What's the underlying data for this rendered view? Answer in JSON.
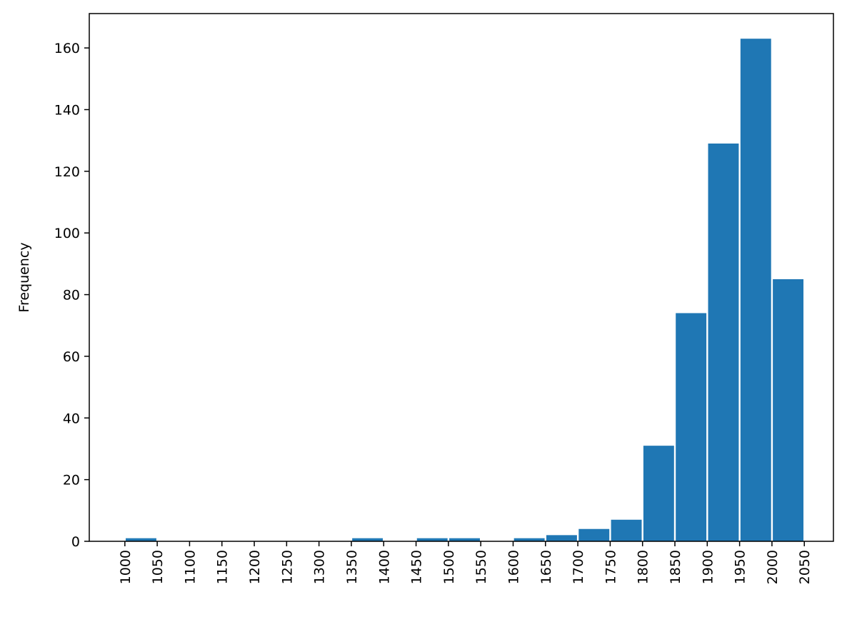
{
  "chart_data": {
    "type": "bar",
    "title": "",
    "xlabel": "",
    "ylabel": "Frequency",
    "bin_edges": [
      1000,
      1050,
      1100,
      1150,
      1200,
      1250,
      1300,
      1350,
      1400,
      1450,
      1500,
      1550,
      1600,
      1650,
      1700,
      1750,
      1800,
      1850,
      1900,
      1950,
      2000,
      2050
    ],
    "values": [
      1,
      0,
      0,
      0,
      0,
      0,
      0,
      1,
      0,
      1,
      1,
      0,
      1,
      2,
      4,
      7,
      31,
      74,
      129,
      163,
      85
    ],
    "x_ticks": [
      "1000",
      "1050",
      "1100",
      "1150",
      "1200",
      "1250",
      "1300",
      "1350",
      "1400",
      "1450",
      "1500",
      "1550",
      "1600",
      "1650",
      "1700",
      "1750",
      "1800",
      "1850",
      "1900",
      "1950",
      "2000",
      "2050"
    ],
    "y_ticks": [
      "0",
      "20",
      "40",
      "60",
      "80",
      "100",
      "120",
      "140",
      "160"
    ],
    "xlim": [
      945,
      2095
    ],
    "ylim": [
      0,
      171.15
    ],
    "grid": false,
    "legend": "none",
    "bar_color": "#1f77b4"
  }
}
